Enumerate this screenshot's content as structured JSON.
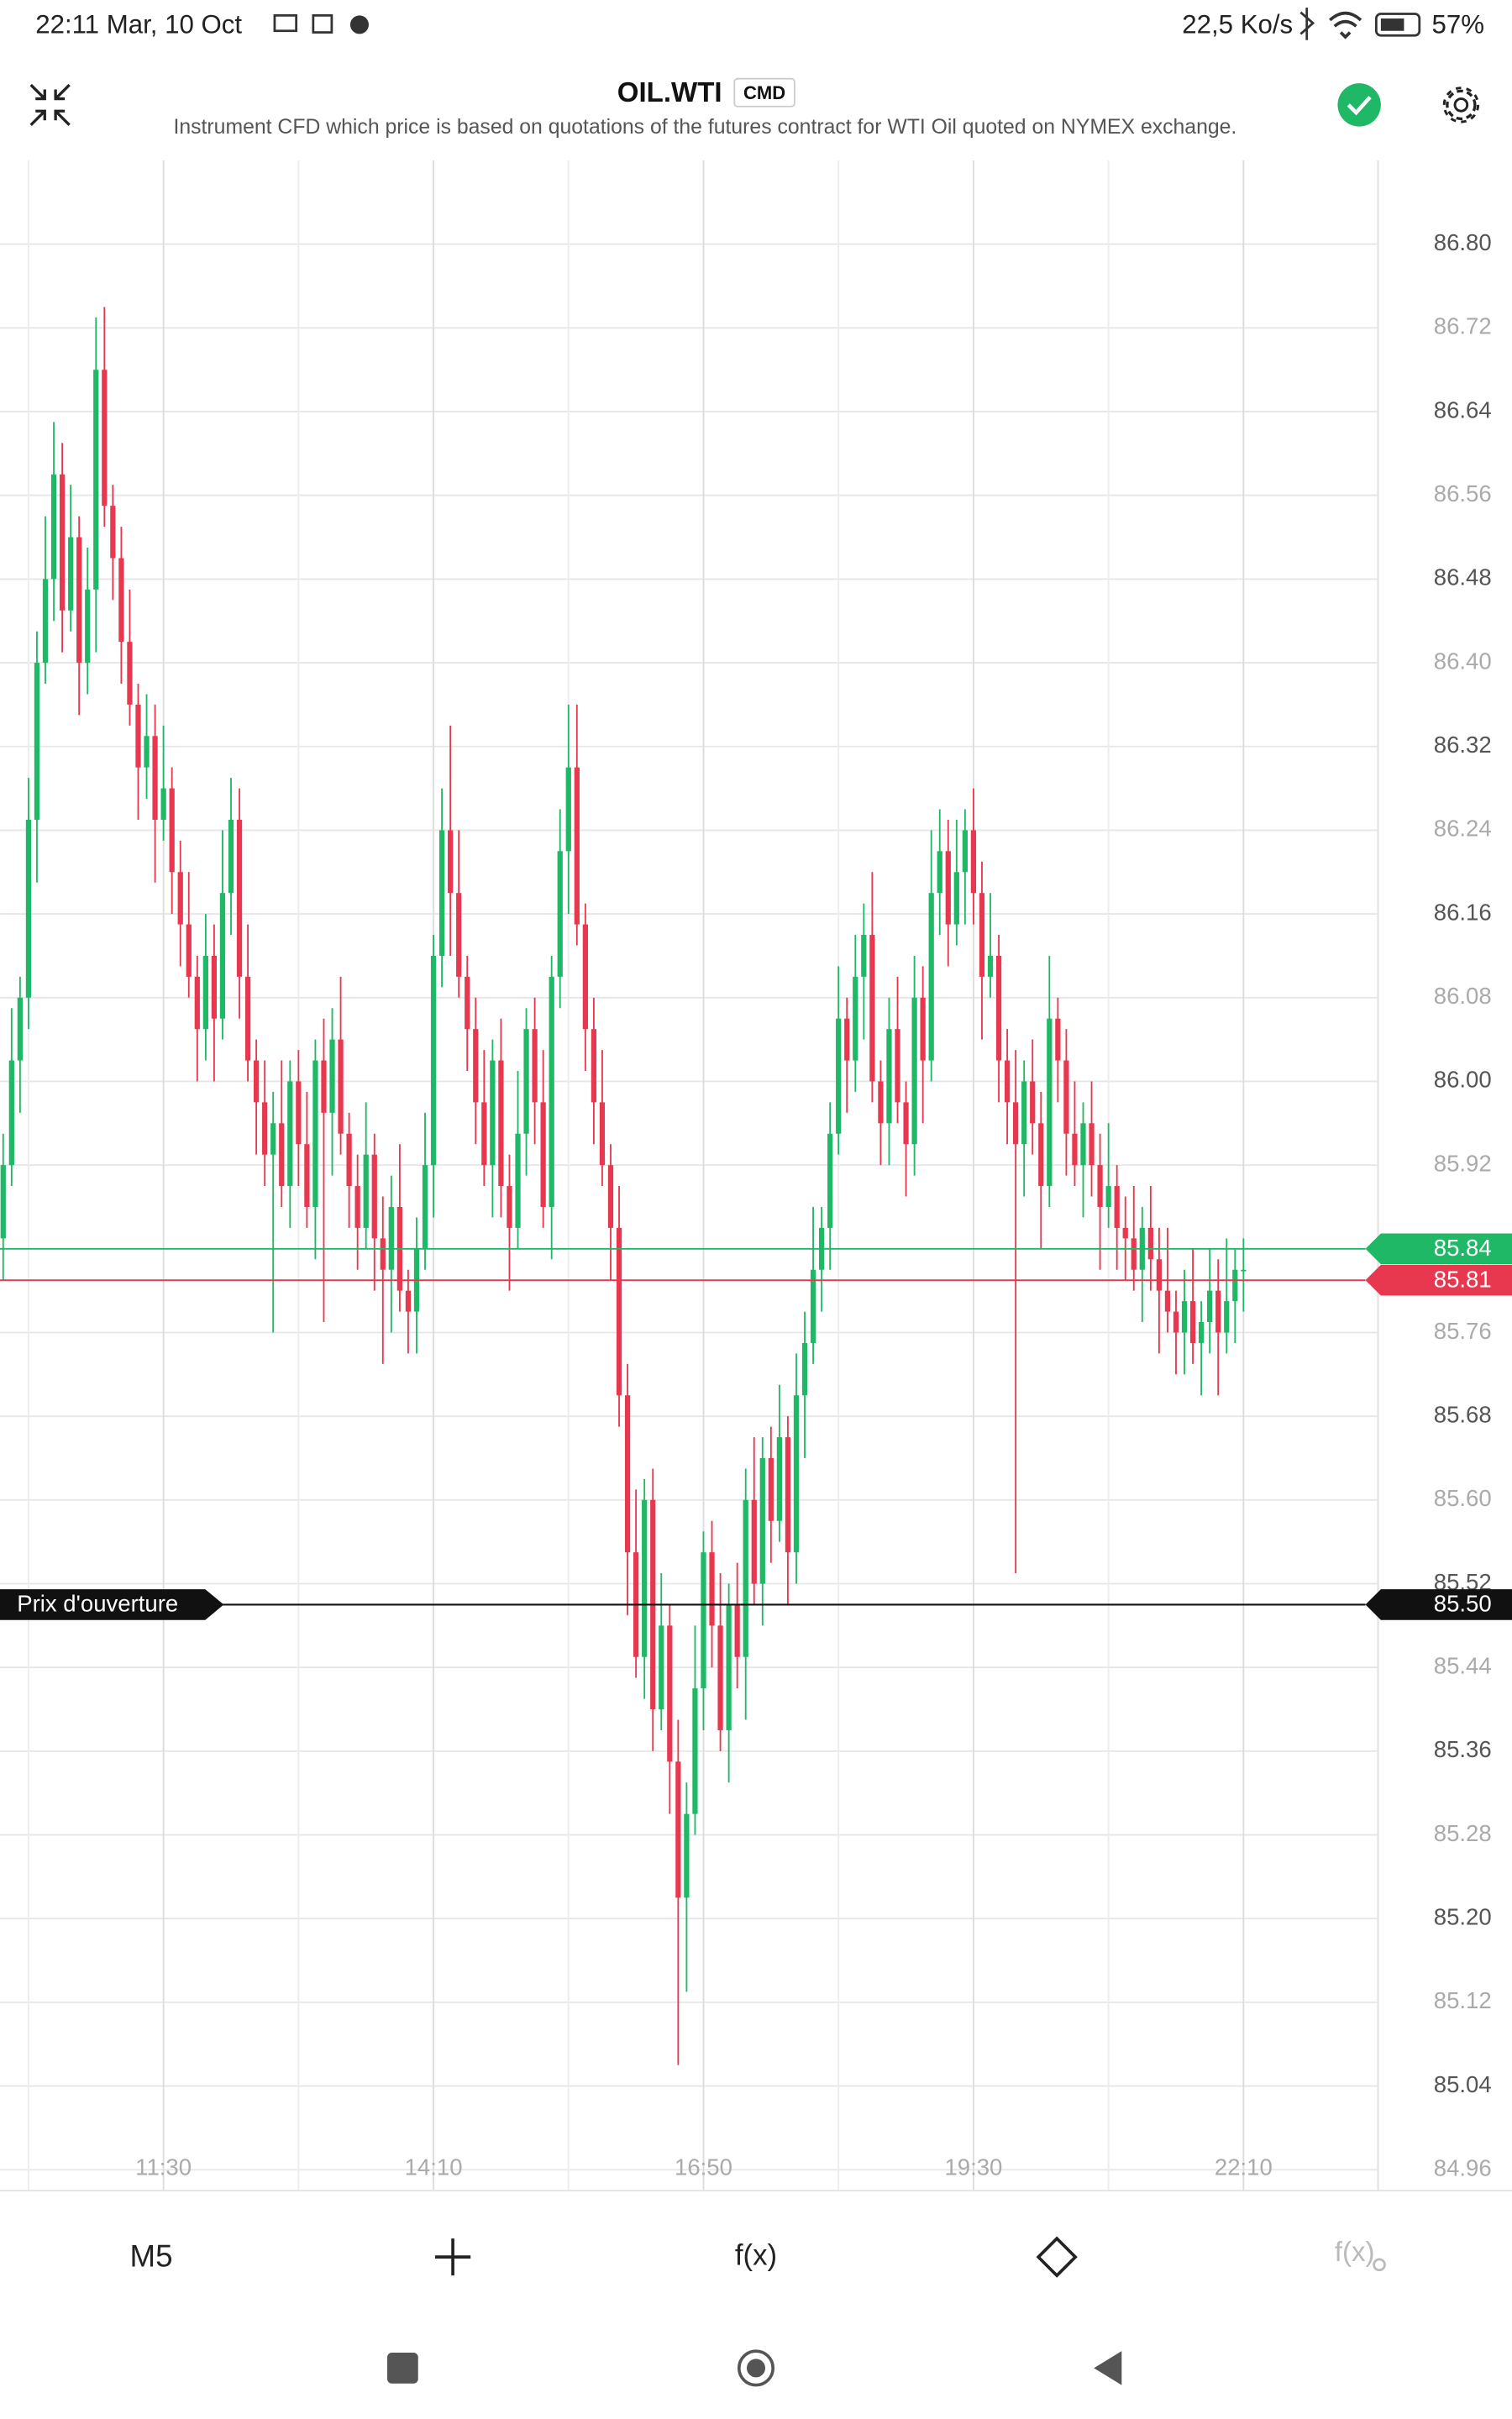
{
  "status_bar": {
    "time": "22:11 Mar, 10 Oct",
    "speed": "22,5 Ko/s",
    "battery": "57%"
  },
  "header": {
    "title": "OIL.WTI",
    "badge": "CMD",
    "description": "Instrument CFD which price is based on quotations of the futures contract for WTI Oil quoted on NYMEX exchange."
  },
  "toolbar": {
    "timeframe": "M5",
    "indicators": "f(x)",
    "indicator_settings": "f(x)"
  },
  "chart_data": {
    "type": "candlestick",
    "up_color": "#1fb866",
    "down_color": "#e8384f",
    "grid": true,
    "categories": [
      null,
      null,
      null,
      null,
      null,
      null,
      null,
      null,
      null,
      null,
      null,
      null,
      null,
      null,
      null,
      null,
      null,
      null,
      null,
      "11:30",
      null,
      null,
      null,
      null,
      null,
      null,
      null,
      null,
      null,
      null,
      null,
      null,
      null,
      null,
      null,
      null,
      null,
      null,
      null,
      null,
      null,
      null,
      null,
      null,
      null,
      null,
      null,
      null,
      null,
      null,
      null,
      "14:10",
      null,
      null,
      null,
      null,
      null,
      null,
      null,
      null,
      null,
      null,
      null,
      null,
      null,
      null,
      null,
      null,
      null,
      null,
      null,
      null,
      null,
      null,
      null,
      null,
      null,
      null,
      null,
      null,
      null,
      null,
      null,
      "16:50",
      null,
      null,
      null,
      null,
      null,
      null,
      null,
      null,
      null,
      null,
      null,
      null,
      null,
      null,
      null,
      null,
      null,
      null,
      null,
      null,
      null,
      null,
      null,
      null,
      null,
      null,
      null,
      null,
      null,
      null,
      null,
      "19:30",
      null,
      null,
      null,
      null,
      null,
      null,
      null,
      null,
      null,
      null,
      null,
      null,
      null,
      null,
      null,
      null,
      null,
      null,
      null,
      null,
      null,
      null,
      null,
      null,
      null,
      null,
      null,
      null,
      null,
      null,
      null,
      "22:10"
    ],
    "open": [
      85.85,
      85.92,
      86.02,
      86.08,
      86.25,
      86.4,
      86.48,
      86.58,
      86.45,
      86.52,
      86.4,
      86.47,
      86.68,
      86.55,
      86.5,
      86.42,
      86.36,
      86.3,
      86.33,
      86.25,
      86.28,
      86.2,
      86.15,
      86.1,
      86.05,
      86.12,
      86.06,
      86.18,
      86.25,
      86.1,
      86.02,
      85.98,
      85.93,
      85.96,
      85.9,
      86.0,
      85.94,
      85.88,
      86.02,
      85.97,
      86.04,
      85.95,
      85.9,
      85.86,
      85.93,
      85.85,
      85.82,
      85.88,
      85.8,
      85.78,
      85.84,
      85.92,
      86.12,
      86.24,
      86.18,
      86.1,
      86.05,
      85.98,
      85.92,
      86.02,
      85.9,
      85.86,
      85.95,
      86.05,
      85.98,
      85.88,
      86.1,
      86.22,
      86.3,
      86.15,
      86.05,
      85.98,
      85.92,
      85.86,
      85.7,
      85.55,
      85.45,
      85.6,
      85.4,
      85.48,
      85.35,
      85.22,
      85.3,
      85.42,
      85.55,
      85.48,
      85.38,
      85.5,
      85.45,
      85.6,
      85.52,
      85.64,
      85.58,
      85.66,
      85.55,
      85.7,
      85.75,
      85.82,
      85.86,
      85.95,
      86.06,
      86.02,
      86.1,
      86.14,
      86.0,
      85.96,
      86.05,
      85.98,
      85.94,
      86.08,
      86.02,
      86.18,
      86.22,
      86.15,
      86.2,
      86.24,
      86.18,
      86.1,
      86.12,
      86.02,
      85.98,
      85.94,
      86.0,
      85.96,
      85.9,
      86.06,
      86.02,
      85.95,
      85.92,
      85.96,
      85.92,
      85.88,
      85.9,
      85.86,
      85.85,
      85.82,
      85.86,
      85.83,
      85.8,
      85.78,
      85.76,
      85.79,
      85.75,
      85.77,
      85.8,
      85.76,
      85.79,
      85.82
    ],
    "high": [
      85.95,
      86.07,
      86.1,
      86.29,
      86.43,
      86.54,
      86.63,
      86.61,
      86.57,
      86.54,
      86.51,
      86.73,
      86.74,
      86.57,
      86.53,
      86.47,
      86.38,
      86.37,
      86.36,
      86.34,
      86.3,
      86.23,
      86.2,
      86.12,
      86.16,
      86.15,
      86.24,
      86.29,
      86.28,
      86.15,
      86.04,
      86.02,
      85.99,
      86.02,
      86.02,
      86.03,
      85.99,
      86.04,
      86.06,
      86.07,
      86.1,
      85.97,
      85.93,
      85.98,
      85.95,
      85.89,
      85.91,
      85.94,
      85.82,
      85.87,
      85.97,
      86.14,
      86.28,
      86.34,
      86.24,
      86.12,
      86.08,
      86.03,
      86.04,
      86.06,
      85.93,
      86.01,
      86.07,
      86.08,
      86.03,
      86.12,
      86.26,
      86.36,
      86.36,
      86.17,
      86.08,
      86.03,
      85.94,
      85.9,
      85.73,
      85.61,
      85.62,
      85.63,
      85.53,
      85.5,
      85.39,
      85.33,
      85.48,
      85.57,
      85.58,
      85.53,
      85.52,
      85.54,
      85.63,
      85.66,
      85.66,
      85.67,
      85.71,
      85.68,
      85.74,
      85.78,
      85.88,
      85.88,
      85.98,
      86.11,
      86.08,
      86.14,
      86.17,
      86.2,
      86.02,
      86.08,
      86.1,
      86.0,
      86.12,
      86.11,
      86.24,
      86.26,
      86.25,
      86.25,
      86.26,
      86.28,
      86.21,
      86.18,
      86.14,
      86.05,
      86.03,
      86.02,
      86.04,
      85.99,
      86.12,
      86.08,
      86.05,
      86.0,
      85.98,
      86.0,
      85.95,
      85.96,
      85.92,
      85.89,
      85.9,
      85.88,
      85.9,
      85.86,
      85.86,
      85.8,
      85.82,
      85.84,
      85.79,
      85.84,
      85.83,
      85.85,
      85.84,
      85.85
    ],
    "low": [
      85.81,
      85.9,
      85.97,
      86.05,
      86.19,
      86.38,
      86.44,
      86.41,
      86.43,
      86.35,
      86.37,
      86.41,
      86.53,
      86.46,
      86.38,
      86.34,
      86.25,
      86.27,
      86.19,
      86.23,
      86.16,
      86.11,
      86.08,
      86.0,
      86.02,
      86.0,
      86.04,
      86.14,
      86.06,
      86.0,
      85.93,
      85.9,
      85.76,
      85.88,
      85.86,
      85.9,
      85.86,
      85.83,
      85.77,
      85.91,
      85.93,
      85.86,
      85.82,
      85.84,
      85.8,
      85.73,
      85.76,
      85.78,
      85.74,
      85.74,
      85.82,
      85.87,
      86.09,
      86.12,
      86.08,
      86.01,
      85.94,
      85.9,
      85.87,
      85.87,
      85.8,
      85.84,
      85.91,
      85.94,
      85.86,
      85.83,
      86.07,
      86.16,
      86.13,
      86.01,
      85.94,
      85.9,
      85.81,
      85.67,
      85.49,
      85.43,
      85.41,
      85.36,
      85.38,
      85.3,
      85.06,
      85.13,
      85.28,
      85.38,
      85.44,
      85.36,
      85.33,
      85.42,
      85.39,
      85.5,
      85.48,
      85.54,
      85.56,
      85.5,
      85.52,
      85.64,
      85.73,
      85.78,
      85.82,
      85.93,
      85.97,
      85.99,
      86.04,
      85.98,
      85.92,
      85.92,
      85.96,
      85.89,
      85.91,
      85.96,
      86.0,
      86.14,
      86.11,
      86.13,
      86.15,
      86.15,
      86.04,
      86.08,
      85.98,
      85.94,
      85.53,
      85.89,
      85.93,
      85.84,
      85.88,
      85.98,
      85.91,
      85.9,
      85.87,
      85.89,
      85.82,
      85.86,
      85.82,
      85.81,
      85.8,
      85.77,
      85.8,
      85.74,
      85.76,
      85.72,
      85.72,
      85.73,
      85.7,
      85.74,
      85.7,
      85.74,
      85.75,
      85.78
    ],
    "close": [
      85.92,
      86.02,
      86.08,
      86.25,
      86.4,
      86.48,
      86.58,
      86.45,
      86.52,
      86.4,
      86.47,
      86.68,
      86.55,
      86.5,
      86.42,
      86.36,
      86.3,
      86.33,
      86.25,
      86.28,
      86.2,
      86.15,
      86.1,
      86.05,
      86.12,
      86.06,
      86.18,
      86.25,
      86.1,
      86.02,
      85.98,
      85.93,
      85.96,
      85.9,
      86.0,
      85.94,
      85.88,
      86.02,
      85.97,
      86.04,
      85.95,
      85.9,
      85.86,
      85.93,
      85.85,
      85.82,
      85.88,
      85.8,
      85.78,
      85.84,
      85.92,
      86.12,
      86.24,
      86.18,
      86.1,
      86.05,
      85.98,
      85.92,
      86.02,
      85.9,
      85.86,
      85.95,
      86.05,
      85.98,
      85.88,
      86.1,
      86.22,
      86.3,
      86.15,
      86.05,
      85.98,
      85.92,
      85.86,
      85.7,
      85.55,
      85.45,
      85.6,
      85.4,
      85.48,
      85.35,
      85.22,
      85.3,
      85.42,
      85.55,
      85.48,
      85.38,
      85.5,
      85.45,
      85.6,
      85.52,
      85.64,
      85.58,
      85.66,
      85.55,
      85.7,
      85.75,
      85.82,
      85.86,
      85.95,
      86.06,
      86.02,
      86.1,
      86.14,
      86.0,
      85.96,
      86.05,
      85.98,
      85.94,
      86.08,
      86.02,
      86.18,
      86.22,
      86.15,
      86.2,
      86.24,
      86.18,
      86.1,
      86.12,
      86.02,
      85.98,
      85.94,
      86.0,
      85.96,
      85.9,
      86.06,
      86.02,
      85.95,
      85.92,
      85.96,
      85.92,
      85.88,
      85.9,
      85.86,
      85.85,
      85.82,
      85.86,
      85.83,
      85.8,
      85.78,
      85.76,
      85.79,
      85.75,
      85.77,
      85.8,
      85.76,
      85.79,
      85.82,
      85.82
    ],
    "ylim": [
      84.94,
      86.88
    ],
    "yticks": [
      {
        "value": 86.8,
        "label": "86.80"
      },
      86.72,
      86.64,
      86.56,
      86.48,
      {
        "value": 86.4,
        "label": "86.40"
      },
      86.32,
      86.24,
      86.16,
      86.08,
      {
        "value": 86,
        "label": "86.00"
      },
      85.92,
      85.84,
      85.76,
      85.68,
      {
        "value": 85.6,
        "label": "85.60"
      },
      85.52,
      85.44,
      85.36,
      85.28,
      {
        "value": 85.2,
        "label": "85.20"
      },
      85.12,
      85.04,
      84.96
    ],
    "ask_line": {
      "value": 85.84,
      "color": "#1fb866"
    },
    "bid_line": {
      "value": 85.81,
      "color": "#e8384f"
    },
    "open_price_line": {
      "name": "Prix d'ouverture",
      "value": 85.5,
      "label": "85.50",
      "color": "#111111"
    }
  }
}
